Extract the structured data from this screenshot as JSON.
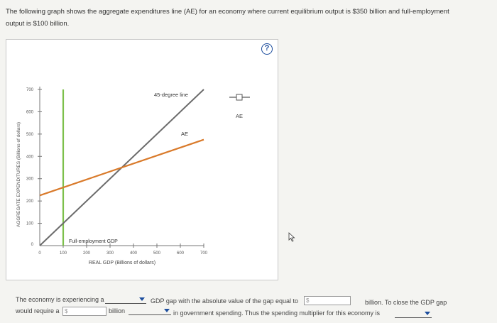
{
  "intro": {
    "line1": "The following graph shows the aggregate expenditures line (AE) for an economy where current equilibrium output is $350 billion and full-employment",
    "line2": "output is $100 billion."
  },
  "help_glyph": "?",
  "graph": {
    "y_axis_label": "AGGREGATE EXPENDITURES (Billions of dollars)",
    "x_axis_label": "REAL GDP (Billions of dollars)",
    "y_ticks": [
      "700",
      "600",
      "500",
      "400",
      "300",
      "200",
      "100",
      "0"
    ],
    "x_ticks": [
      "0",
      "100",
      "200",
      "300",
      "400",
      "500",
      "600",
      "700"
    ],
    "line_45_label": "45-degree line",
    "ae_label": "AE",
    "full_employment_label": "Full-employment GDP",
    "legend_label": "AE",
    "colors": {
      "ae": "#d97a2a",
      "line45": "#6b6b6b",
      "full_employment": "#7cc04b"
    }
  },
  "chart_data": {
    "type": "line",
    "xlabel": "REAL GDP (Billions of dollars)",
    "ylabel": "AGGREGATE EXPENDITURES (Billions of dollars)",
    "xlim": [
      0,
      700
    ],
    "ylim": [
      0,
      700
    ],
    "series": [
      {
        "name": "45-degree line",
        "x": [
          0,
          700
        ],
        "y": [
          0,
          700
        ]
      },
      {
        "name": "AE",
        "x": [
          0,
          700
        ],
        "y": [
          225,
          475
        ]
      },
      {
        "name": "Full-employment GDP",
        "x": [
          100,
          100
        ],
        "y": [
          0,
          700
        ]
      }
    ]
  },
  "question": {
    "part1_a": "The economy is experiencing a",
    "part1_b": "would require a",
    "dollar1": "$",
    "billion_label": "billion",
    "part2_a": "GDP gap with the absolute value of the gap equal to",
    "dollar2": "$",
    "part2_b": "billion. To close the GDP gap",
    "part2_c": "in government spending. Thus the spending multiplier for this economy is"
  }
}
